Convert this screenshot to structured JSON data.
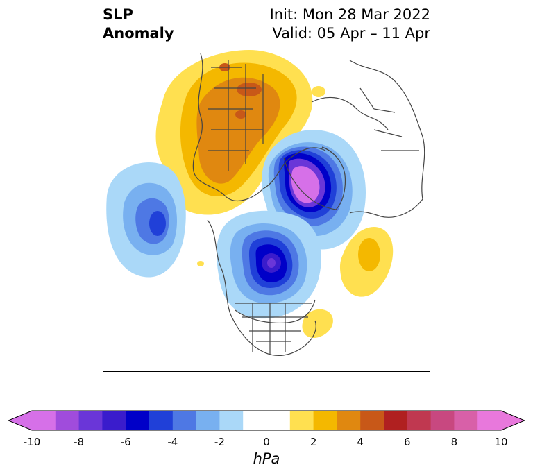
{
  "title": {
    "left_line1": "SLP",
    "left_line2": "Anomaly",
    "right_line1": "Init: Mon 28 Mar 2022",
    "right_line2": "Valid: 05 Apr – 11 Apr"
  },
  "map": {
    "region": "Northern Hemisphere polar view (North America, Arctic, Europe/Asia)",
    "features": [
      {
        "type": "negative-anomaly",
        "location": "Arctic Ocean / north of Greenland",
        "min_hpa": -10
      },
      {
        "type": "negative-anomaly",
        "location": "Hudson Bay / central Canada",
        "min_hpa": -8
      },
      {
        "type": "negative-anomaly",
        "location": "North Pacific",
        "min_hpa": -6
      },
      {
        "type": "positive-anomaly",
        "location": "Siberia / northern Asia",
        "max_hpa": 6
      },
      {
        "type": "positive-anomaly",
        "location": "North Atlantic",
        "max_hpa": 2
      },
      {
        "type": "positive-anomaly",
        "location": "western Atlantic off US east coast",
        "max_hpa": 2
      }
    ]
  },
  "colorbar": {
    "unit": "hPa",
    "min": -10,
    "max": 10,
    "step": 1,
    "extend": "both",
    "tick_labels": [
      "-10",
      "-8",
      "-6",
      "-4",
      "-2",
      "0",
      "2",
      "4",
      "6",
      "8",
      "10"
    ],
    "below_color": "#d670e8",
    "above_color": "#e878dc",
    "colors": [
      "#d670e8",
      "#a04cdc",
      "#6a36d8",
      "#3a1ccc",
      "#0000c8",
      "#2040d8",
      "#4e78e4",
      "#78b0f0",
      "#aad8f8",
      "#ffffff",
      "#ffffff",
      "#ffe050",
      "#f4b800",
      "#e08810",
      "#c85818",
      "#b02020",
      "#c03850",
      "#c84880",
      "#d860a8",
      "#e878dc"
    ]
  }
}
